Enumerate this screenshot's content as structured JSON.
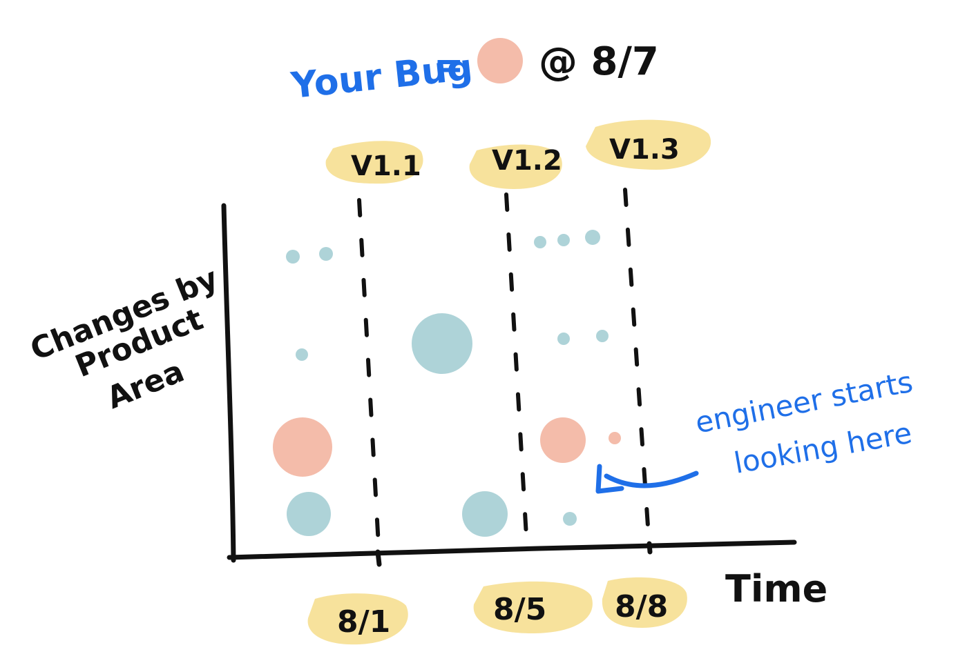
{
  "legend": {
    "prefix": "Your Bug",
    "equals": "=",
    "at_date": "@ 8/7",
    "bug_color": "#f4bcaa"
  },
  "releases": [
    {
      "label": "V1.1"
    },
    {
      "label": "V1.2"
    },
    {
      "label": "V1.3"
    }
  ],
  "y_axis_label": [
    "Changes by",
    "Product",
    "Area"
  ],
  "x_axis_label": "Time",
  "date_labels": [
    "8/1",
    "8/5",
    "8/8"
  ],
  "annotation": [
    "engineer starts",
    "looking here"
  ],
  "colors": {
    "release_highlight": "#f7e29c",
    "change_dot": "#aed3d8",
    "bug_related_dot": "#f4bcaa",
    "annotation_ink": "#1f6fe8",
    "axis_ink": "#111111"
  }
}
